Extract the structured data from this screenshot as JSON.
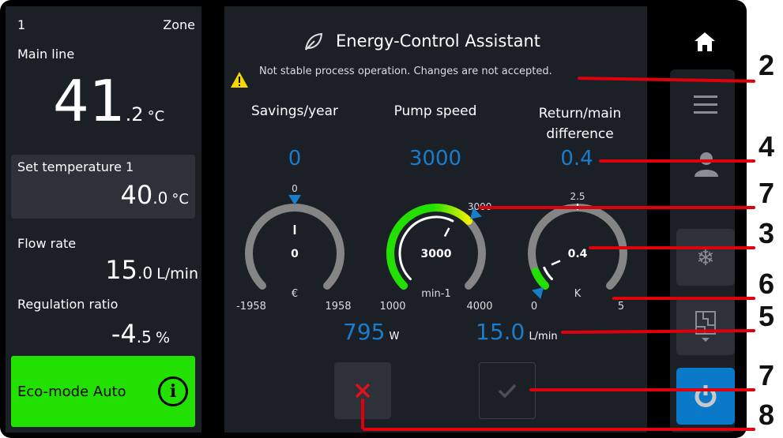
{
  "left": {
    "zone_number": "1",
    "zone_label": "Zone",
    "main_line_label": "Main line",
    "main_temp_int": "41",
    "main_temp_dec": ".2",
    "main_temp_unit": "°C",
    "set_temp_label": "Set temperature 1",
    "set_temp_int": "40",
    "set_temp_dec": ".0",
    "set_temp_unit": "°C",
    "flow_label": "Flow rate",
    "flow_int": "15",
    "flow_dec": ".0",
    "flow_unit": "L/min",
    "reg_label": "Regulation ratio",
    "reg_int": "-4",
    "reg_dec": ".5",
    "reg_unit": "%",
    "eco_label": "Eco-mode Auto",
    "eco_color": "#22e000"
  },
  "center": {
    "title": "Energy-Control Assistant",
    "warning": "Not stable process operation. Changes are not accepted.",
    "gauges": [
      {
        "label": "Savings/year",
        "value_top": "0",
        "center_value": "0",
        "unit": "€",
        "min": -1958,
        "max": 1958,
        "min_label": "-1958",
        "max_label": "1958",
        "setpoint": 0,
        "setpoint_label": "0",
        "value": 0
      },
      {
        "label": "Pump speed",
        "value_top": "3000",
        "center_value": "3000",
        "unit": "min-1",
        "min": 1000,
        "max": 4000,
        "min_label": "1000",
        "max_label": "4000",
        "setpoint": 3000,
        "setpoint_label": "3000",
        "value": 2800,
        "fill": 3000
      },
      {
        "label": "Return/main difference",
        "value_top": "0.4",
        "center_value": "0.4",
        "unit": "K",
        "min": 0,
        "max": 5,
        "min_label": "0",
        "max_label": "5",
        "setpoint": 0,
        "mid_label": "2.5",
        "value": 0.4,
        "fill": 0.4
      }
    ],
    "power_value": "795",
    "power_unit": "W",
    "flow_value": "15.0",
    "flow_unit": "L/min"
  },
  "nav": [
    "home-icon",
    "menu-icon",
    "user-icon",
    "snowflake-icon",
    "floorplan-icon",
    "power-icon"
  ],
  "callouts": [
    "2",
    "4",
    "7",
    "3",
    "6",
    "5",
    "7",
    "8"
  ],
  "colors": {
    "accent": "#1a7dcc",
    "green": "#22e000",
    "cancel": "#e0101c",
    "callout_line": "#e0000d"
  }
}
